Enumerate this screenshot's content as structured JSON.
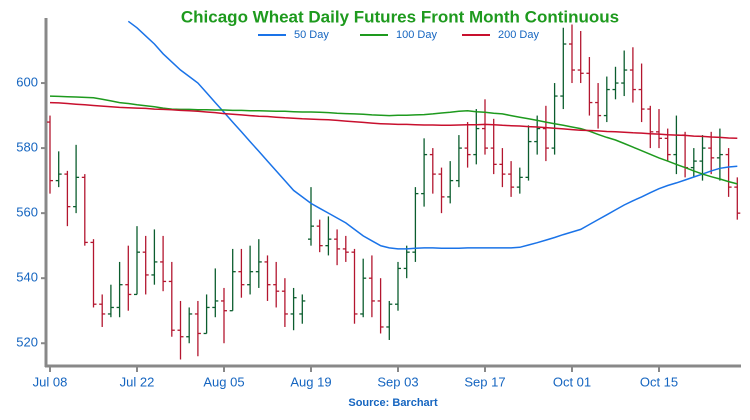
{
  "chart_data": {
    "type": "ohlc",
    "title": "Chicago Wheat Daily Futures Front Month Continuous",
    "source": "Source: Barchart",
    "categories": [
      "Jul 08",
      null,
      null,
      null,
      null,
      null,
      null,
      null,
      null,
      null,
      "Jul 22",
      null,
      null,
      null,
      null,
      null,
      null,
      null,
      null,
      null,
      "Aug 05",
      null,
      null,
      null,
      null,
      null,
      null,
      null,
      null,
      null,
      "Aug 19",
      null,
      null,
      null,
      null,
      null,
      null,
      null,
      null,
      null,
      "Sep 03",
      null,
      null,
      null,
      null,
      null,
      null,
      null,
      null,
      null,
      "Sep 17",
      null,
      null,
      null,
      null,
      null,
      null,
      null,
      null,
      null,
      "Oct 01",
      null,
      null,
      null,
      null,
      null,
      null,
      null,
      null,
      null,
      "Oct 15",
      null,
      null,
      null,
      null,
      null,
      null,
      null,
      null,
      null
    ],
    "ohlc": {
      "open": [
        588,
        570,
        572,
        562,
        571,
        551,
        532,
        529,
        531,
        538,
        535,
        548,
        541,
        545,
        539,
        524,
        522,
        529,
        523,
        531,
        533,
        530,
        542,
        538,
        542,
        545,
        538,
        536,
        529,
        529,
        552,
        556,
        550,
        552,
        549,
        548,
        529,
        540,
        533,
        525,
        532,
        543,
        548,
        566,
        578,
        572,
        565,
        570,
        580,
        578,
        586,
        580,
        575,
        572,
        568,
        571,
        582,
        586,
        580,
        596,
        612,
        604,
        603,
        594,
        590,
        598,
        600,
        604,
        598,
        592,
        585,
        583,
        578,
        584,
        574,
        576,
        580,
        577,
        578,
        568
      ],
      "high": [
        590,
        579,
        573,
        581,
        572,
        552,
        535,
        538,
        545,
        550,
        556,
        553,
        555,
        553,
        545,
        533,
        531,
        533,
        535,
        543,
        537,
        549,
        549,
        550,
        552,
        547,
        545,
        540,
        537,
        535,
        568,
        558,
        559,
        555,
        553,
        549,
        546,
        547,
        540,
        533,
        545,
        550,
        568,
        583,
        580,
        574,
        576,
        584,
        588,
        592,
        595,
        589,
        580,
        576,
        574,
        587,
        590,
        593,
        600,
        617,
        618,
        616,
        608,
        600,
        602,
        605,
        610,
        611,
        606,
        593,
        592,
        586,
        590,
        585,
        580,
        584,
        585,
        586,
        580,
        571
      ],
      "low": [
        566,
        568,
        556,
        560,
        550,
        531,
        525,
        528,
        528,
        530,
        535,
        535,
        538,
        536,
        522,
        515,
        520,
        516,
        523,
        528,
        520,
        530,
        534,
        535,
        537,
        533,
        531,
        525,
        524,
        526,
        550,
        548,
        547,
        544,
        545,
        526,
        528,
        528,
        523,
        521,
        530,
        540,
        545,
        562,
        566,
        560,
        563,
        568,
        574,
        575,
        578,
        572,
        568,
        565,
        566,
        570,
        578,
        576,
        578,
        592,
        600,
        600,
        590,
        586,
        588,
        595,
        596,
        594,
        588,
        580,
        580,
        576,
        572,
        571,
        571,
        570,
        572,
        570,
        565,
        558
      ],
      "close": [
        570,
        572,
        562,
        571,
        551,
        532,
        529,
        531,
        538,
        535,
        548,
        541,
        545,
        539,
        524,
        522,
        529,
        523,
        531,
        533,
        530,
        542,
        538,
        542,
        545,
        538,
        536,
        529,
        534,
        533,
        556,
        550,
        552,
        549,
        548,
        529,
        540,
        533,
        525,
        532,
        543,
        548,
        566,
        578,
        572,
        565,
        570,
        580,
        578,
        586,
        580,
        575,
        572,
        568,
        571,
        582,
        586,
        580,
        596,
        612,
        604,
        603,
        594,
        590,
        598,
        600,
        604,
        598,
        592,
        585,
        583,
        578,
        584,
        574,
        576,
        580,
        577,
        578,
        568,
        560
      ]
    },
    "up_color": "#0b5d2e",
    "down_color": "#b3162f",
    "series": [
      {
        "name": "50 Day",
        "color": "#1a73e8",
        "values": [
          null,
          null,
          null,
          null,
          null,
          null,
          null,
          null,
          null,
          619,
          617,
          614.5,
          612,
          609,
          606.5,
          604,
          602,
          600,
          597,
          594,
          591,
          588,
          585,
          582,
          579,
          576,
          573,
          570,
          567,
          565,
          563,
          561.5,
          560,
          558.5,
          557,
          555,
          553,
          551.5,
          550,
          549.3,
          549,
          549,
          549.2,
          549.3,
          549.3,
          549.2,
          549.2,
          549.2,
          549.3,
          549.3,
          549.3,
          549.3,
          549.3,
          549.3,
          549.5,
          550.2,
          550.9,
          551.7,
          552.5,
          553.4,
          554.2,
          555,
          556.5,
          558,
          559.5,
          561,
          562.5,
          563.8,
          565,
          566.3,
          567.5,
          568.5,
          569.3,
          570.2,
          571.1,
          572,
          573,
          573.8,
          574.2,
          574.4
        ]
      },
      {
        "name": "100 Day",
        "color": "#1e9a1e",
        "values": [
          596,
          595.9,
          595.8,
          595.7,
          595.6,
          595.5,
          595,
          594.5,
          594,
          593.7,
          593.3,
          593,
          592.7,
          592.3,
          592,
          591.9,
          591.9,
          591.8,
          591.8,
          591.7,
          591.7,
          591.6,
          591.6,
          591.5,
          591.5,
          591.4,
          591.3,
          591.3,
          591.2,
          591.1,
          591.1,
          591,
          590.9,
          590.7,
          590.6,
          590.5,
          590.4,
          590.2,
          590.1,
          590,
          590.1,
          590.1,
          590.2,
          590.3,
          590.5,
          590.8,
          591,
          591.3,
          591.5,
          591.2,
          591,
          590.7,
          590.5,
          590,
          589.5,
          589,
          588.5,
          588,
          587.5,
          587,
          586.5,
          586,
          585.2,
          584.2,
          583.3,
          582.5,
          581.4,
          580.3,
          579.2,
          578.1,
          577,
          576,
          575,
          574,
          573,
          572,
          571.2,
          570.5,
          569.7,
          569
        ]
      },
      {
        "name": "200 Day",
        "color": "#c8102e",
        "values": [
          594,
          593.9,
          593.7,
          593.5,
          593.3,
          593.1,
          592.9,
          592.7,
          592.5,
          592.4,
          592.3,
          592.2,
          592,
          591.9,
          591.8,
          591.6,
          591.5,
          591.3,
          591.1,
          590.9,
          590.6,
          590.4,
          590.2,
          590,
          589.8,
          589.7,
          589.5,
          589.3,
          589.2,
          589,
          588.9,
          588.8,
          588.7,
          588.5,
          588.3,
          588.1,
          587.9,
          587.7,
          587.5,
          587.4,
          587.3,
          587.3,
          587.2,
          587.1,
          587.1,
          587,
          587,
          587.1,
          587.2,
          587.2,
          587.3,
          587.2,
          587,
          586.9,
          586.8,
          586.6,
          586.5,
          586.3,
          586.1,
          585.9,
          585.7,
          585.5,
          585.4,
          585.3,
          585.1,
          585,
          584.9,
          584.7,
          584.6,
          584.4,
          584.3,
          584.1,
          584,
          583.9,
          583.7,
          583.6,
          583.4,
          583.3,
          583.1,
          583
        ]
      }
    ],
    "ylim": [
      513,
      620
    ],
    "yticks": [
      520,
      540,
      560,
      580,
      600
    ],
    "legend": "top"
  }
}
